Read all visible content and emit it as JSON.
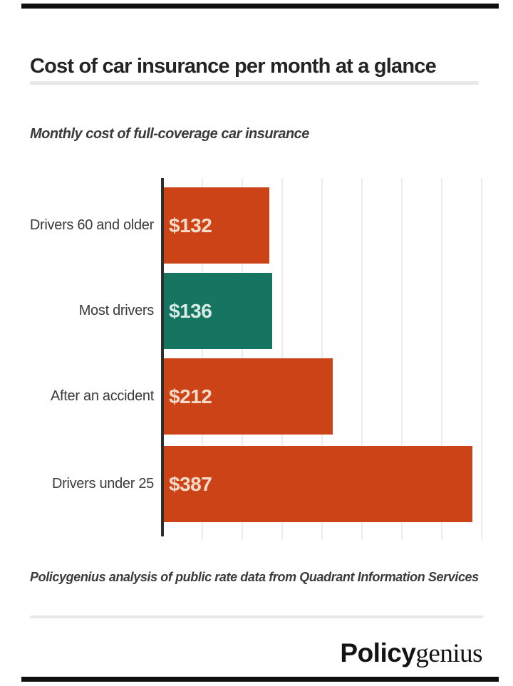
{
  "header": {
    "title": "Cost of car insurance per month at a glance"
  },
  "chart_data": {
    "type": "bar",
    "orientation": "horizontal",
    "title": "Monthly cost of full-coverage car insurance",
    "categories": [
      "Drivers 60 and older",
      "Most drivers",
      "After an accident",
      "Drivers under 25"
    ],
    "series": [
      {
        "name": "Monthly cost of full-coverage car insurance (USD)",
        "values": [
          132,
          136,
          212,
          387
        ]
      }
    ],
    "value_labels": [
      "$132",
      "$136",
      "$212",
      "$387"
    ],
    "bar_colors": [
      "#cb4317",
      "#167561",
      "#cb4317",
      "#cb4317"
    ],
    "value_label_colors": [
      "#f6dcc9",
      "#d8ebe5",
      "#f6dcc9",
      "#f6dcc9"
    ],
    "xlim": [
      0,
      400
    ],
    "gridline_interval": 50,
    "grid": "vertical light-gray lines, no tick labels",
    "legend": "none",
    "xlabel": "",
    "ylabel": ""
  },
  "footnote": {
    "text": "Policygenius analysis of public rate data from Quadrant Information Services"
  },
  "brand": {
    "logo_bold": "Policy",
    "logo_serif": "genius"
  },
  "colors": {
    "accent_orange": "#cb4317",
    "accent_teal": "#167561",
    "axis": "#2f2f2f",
    "gridline": "#ececec",
    "divider": "#e8e8e8",
    "rule_black": "#0f0f0f",
    "text_dark": "#242424",
    "text_medium": "#3b3b3b",
    "background": "#ffffff"
  }
}
